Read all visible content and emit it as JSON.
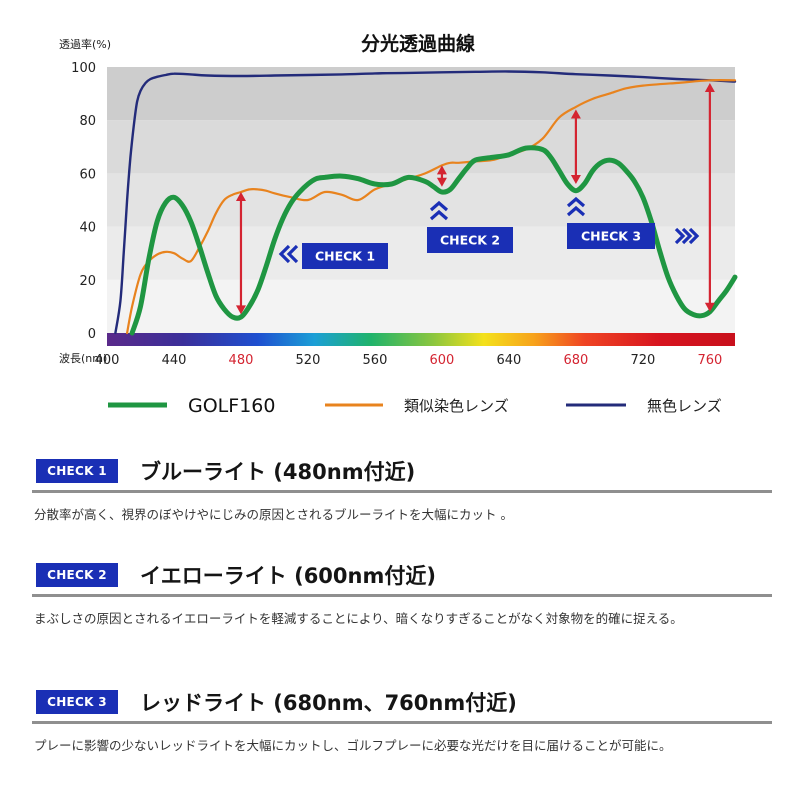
{
  "chart_data": {
    "type": "line",
    "title": "分光透過曲線",
    "ylabel": "透過率(%)",
    "xlabel": "波長(nm)",
    "xlim": [
      400,
      775
    ],
    "ylim": [
      0,
      100
    ],
    "x_ticks": [
      400,
      440,
      480,
      520,
      560,
      600,
      640,
      680,
      720,
      760
    ],
    "x_ticks_highlight": [
      480,
      600,
      680,
      760
    ],
    "y_ticks": [
      0,
      20,
      40,
      60,
      80,
      100
    ],
    "grid": true,
    "legend_position": "bottom",
    "series": [
      {
        "name": "GOLF160",
        "color": "#1f9642",
        "x": [
          415,
          420,
          425,
          430,
          435,
          440,
          445,
          450,
          455,
          460,
          465,
          470,
          475,
          480,
          485,
          490,
          495,
          500,
          505,
          510,
          515,
          520,
          525,
          530,
          540,
          550,
          560,
          570,
          580,
          590,
          595,
          600,
          605,
          610,
          615,
          620,
          630,
          640,
          650,
          660,
          665,
          670,
          675,
          680,
          685,
          690,
          695,
          700,
          705,
          710,
          715,
          720,
          725,
          730,
          735,
          740,
          745,
          750,
          755,
          760,
          765,
          770,
          775
        ],
        "y": [
          0,
          10,
          28,
          42,
          49,
          51,
          48,
          42,
          33,
          23,
          14,
          9,
          6,
          6,
          10,
          16,
          25,
          35,
          43,
          49,
          53,
          56,
          58,
          58.5,
          59,
          58,
          56,
          56,
          58.5,
          57,
          55,
          53,
          54,
          58,
          62,
          65,
          66,
          67,
          69.5,
          69,
          66,
          61,
          56,
          53.5,
          56,
          61,
          64,
          65,
          64,
          61,
          57,
          51,
          42,
          31,
          21,
          14,
          9,
          7,
          6.5,
          8,
          12,
          16,
          21
        ]
      },
      {
        "name": "類似染色レンズ",
        "color": "#e8831e",
        "x": [
          412,
          415,
          420,
          425,
          430,
          435,
          440,
          445,
          450,
          455,
          460,
          465,
          470,
          475,
          480,
          485,
          490,
          495,
          500,
          510,
          520,
          530,
          540,
          550,
          560,
          570,
          580,
          590,
          600,
          605,
          610,
          620,
          630,
          640,
          650,
          660,
          670,
          680,
          690,
          700,
          710,
          720,
          740,
          760,
          775
        ],
        "y": [
          0,
          10,
          22,
          27,
          29.5,
          30.5,
          30,
          28,
          27,
          32,
          38,
          45,
          50,
          52,
          53,
          54,
          54,
          53.5,
          52.5,
          51,
          50,
          53,
          52,
          50,
          54,
          56,
          58,
          60,
          63,
          64,
          64,
          64.5,
          65,
          67,
          69,
          73,
          81,
          85,
          88,
          90,
          92,
          93,
          94,
          95,
          95
        ]
      },
      {
        "name": "無色レンズ",
        "color": "#232b7a",
        "x": [
          405,
          408,
          410,
          412,
          414,
          416,
          418,
          420,
          423,
          426,
          430,
          435,
          440,
          450,
          460,
          480,
          500,
          520,
          540,
          560,
          580,
          600,
          620,
          640,
          660,
          680,
          700,
          720,
          740,
          760,
          775
        ],
        "y": [
          0,
          12,
          30,
          50,
          66,
          78,
          87,
          91,
          94,
          95.5,
          96.3,
          97,
          97.5,
          97.2,
          96.8,
          96.6,
          96.8,
          97,
          97.2,
          97.6,
          97.8,
          98,
          98.2,
          98.3,
          98,
          97.3,
          96.8,
          96.2,
          95.5,
          95,
          94.5
        ]
      }
    ],
    "annotations": [
      {
        "label": "CHECK 1",
        "x": 480,
        "from": 7,
        "to": 53
      },
      {
        "label": "CHECK 2",
        "x": 600,
        "from": 55,
        "to": 63
      },
      {
        "label": "CHECK 3",
        "x": 680,
        "from": 56,
        "to": 84
      },
      {
        "x": 760,
        "from": 8,
        "to": 94
      }
    ],
    "arrow_color": "#d42431",
    "badge_color": "#1a2fb5",
    "legend": [
      "GOLF160",
      "類似染色レンズ",
      "無色レンズ"
    ]
  },
  "sections": [
    {
      "badge": "CHECK 1",
      "title": "ブルーライト (480nm付近)",
      "body": "分散率が高く、視界のぼやけやにじみの原因とされるブルーライトを大幅にカット 。"
    },
    {
      "badge": "CHECK 2",
      "title": "イエローライト (600nm付近)",
      "body": "まぶしさの原因とされるイエローライトを軽減することにより、暗くなりすぎることがなく対象物を的確に捉える。"
    },
    {
      "badge": "CHECK 3",
      "title": "レッドライト (680nm、760nm付近)",
      "body": "プレーに影響の少ないレッドライトを大幅にカットし、ゴルフプレーに必要な光だけを目に届けることが可能に。"
    }
  ]
}
